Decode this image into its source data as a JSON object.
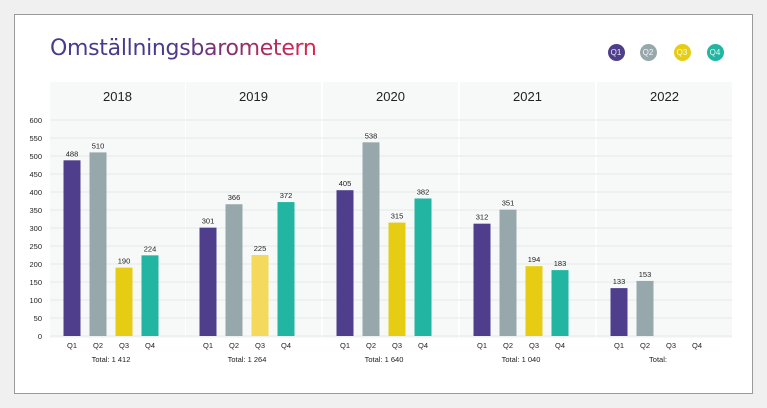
{
  "title": "Omställningsbarometern",
  "colors": {
    "title_start": "#4a3a8c",
    "title_end": "#e0244a",
    "Q1": "#4f3e8c",
    "Q2": "#97a8ad",
    "Q3": "#e6cd14",
    "Q4": "#22b5a2",
    "Q3_2019": "#f3da5c",
    "panel_bg": "#f7f9f8",
    "grid": "#dde3e2",
    "text": "#222222"
  },
  "legend": [
    {
      "label": "Q1",
      "color": "#4f3e8c"
    },
    {
      "label": "Q2",
      "color": "#97a8ad"
    },
    {
      "label": "Q3",
      "color": "#e6cd14"
    },
    {
      "label": "Q4",
      "color": "#22b5a2"
    }
  ],
  "chart_data": {
    "type": "bar",
    "ylim": [
      0,
      600
    ],
    "yticks": [
      0,
      50,
      100,
      150,
      200,
      250,
      300,
      350,
      400,
      450,
      500,
      550,
      600
    ],
    "grid": true,
    "legend_position": "top-right",
    "series_names": [
      "Q1",
      "Q2",
      "Q3",
      "Q4"
    ],
    "panels": [
      {
        "year": "2018",
        "categories": [
          "Q1",
          "Q2",
          "Q3",
          "Q4"
        ],
        "values": [
          488,
          510,
          190,
          224
        ],
        "total": "Total: 1 412"
      },
      {
        "year": "2019",
        "categories": [
          "Q1",
          "Q2",
          "Q3",
          "Q4"
        ],
        "values": [
          301,
          366,
          225,
          372
        ],
        "total": "Total: 1 264"
      },
      {
        "year": "2020",
        "categories": [
          "Q1",
          "Q2",
          "Q3",
          "Q4"
        ],
        "values": [
          405,
          538,
          315,
          382
        ],
        "total": "Total: 1 640"
      },
      {
        "year": "2021",
        "categories": [
          "Q1",
          "Q2",
          "Q3",
          "Q4"
        ],
        "values": [
          312,
          351,
          194,
          183
        ],
        "total": "Total: 1 040"
      },
      {
        "year": "2022",
        "categories": [
          "Q1",
          "Q2",
          "Q3",
          "Q4"
        ],
        "values": [
          133,
          153,
          null,
          null
        ],
        "labels": [
          "133",
          "153",
          null,
          null
        ],
        "total": "Total:"
      }
    ]
  }
}
